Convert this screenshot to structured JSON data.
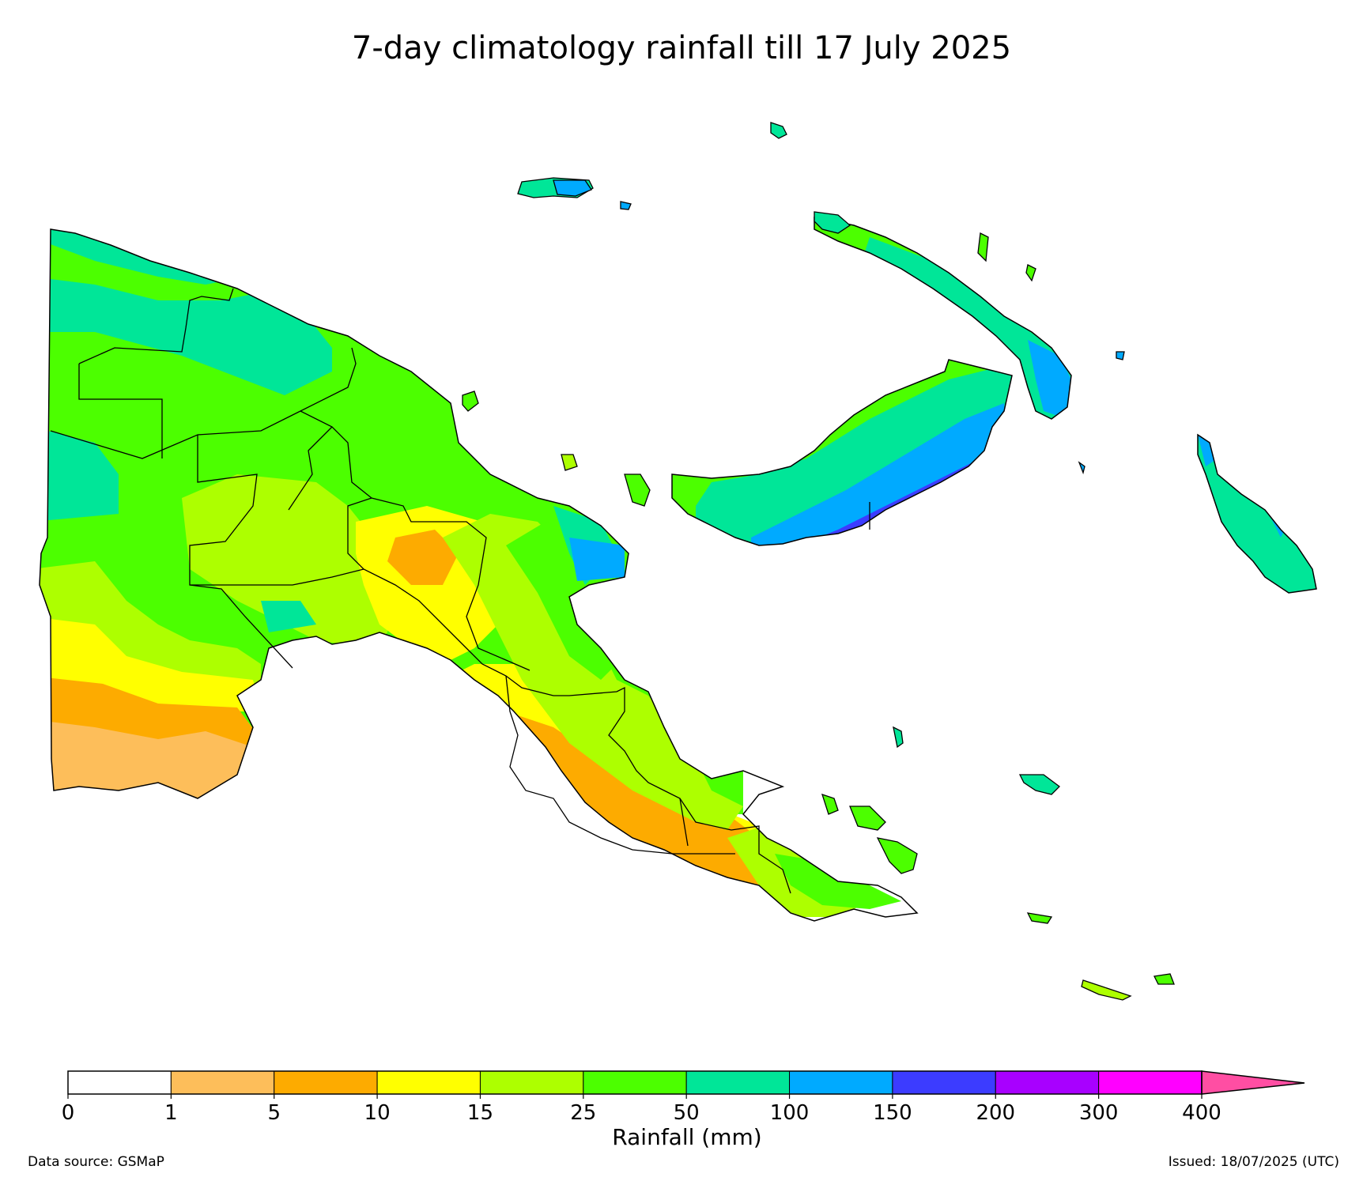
{
  "title": "7-day climatology rainfall till 17 July 2025",
  "legend": {
    "label": "Rainfall (mm)",
    "ticks": [
      "0",
      "1",
      "5",
      "10",
      "15",
      "25",
      "50",
      "100",
      "150",
      "200",
      "300",
      "400"
    ],
    "colors": [
      "#ffffff",
      "#fdbe5a",
      "#fdab00",
      "#ffff00",
      "#adff00",
      "#4cff00",
      "#00e698",
      "#00aaff",
      "#3c3cff",
      "#a800ff",
      "#ff00ff"
    ],
    "extend_color": "#ff4ea3"
  },
  "map_colors": {
    "r1_5": "#fdbe5a",
    "r5_10": "#fdab00",
    "r10_15": "#ffff00",
    "r15_25": "#adff00",
    "r25_50": "#4cff00",
    "r50_100": "#00e698",
    "r100_150": "#00aaff",
    "r150_200": "#3c3cff",
    "border": "#000000"
  },
  "footer": {
    "source": "Data source: GSMaP",
    "issued": "Issued: 18/07/2025 (UTC)"
  }
}
